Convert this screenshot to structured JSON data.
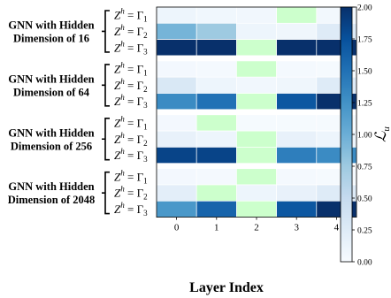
{
  "chart_data": {
    "type": "heatmap",
    "xlabel": "Layer Index",
    "x_ticks": [
      "0",
      "1",
      "2",
      "3",
      "4"
    ],
    "colorbar": {
      "label": "ℒ",
      "label_sub": "u",
      "colormap": "Blues",
      "range": [
        0.0,
        2.0
      ],
      "ticks": [
        "0.00",
        "0.25",
        "0.50",
        "0.75",
        "1.00",
        "1.25",
        "1.50",
        "1.75",
        "2.00"
      ]
    },
    "highlight_color": "#ccffcc",
    "groups": [
      {
        "title_line1": "GNN with Hidden",
        "title_line2": "Dimension of 16",
        "rows": [
          {
            "label": "Z",
            "sup": "h",
            "rhs": "Γ",
            "sub": "1",
            "values": [
              0.1,
              0.07,
              0.06,
              null,
              0.05
            ]
          },
          {
            "label": "Z",
            "sup": "h",
            "rhs": "Γ",
            "sub": "2",
            "values": [
              0.95,
              0.75,
              0.1,
              0.08,
              0.25
            ]
          },
          {
            "label": "Z",
            "sup": "h",
            "rhs": "Γ",
            "sub": "3",
            "values": [
              2.0,
              2.0,
              null,
              2.0,
              2.0
            ]
          }
        ],
        "highlight_cells": [
          [
            0,
            3
          ],
          [
            2,
            2
          ]
        ]
      },
      {
        "title_line1": "GNN with Hidden",
        "title_line2": "Dimension of 64",
        "rows": [
          {
            "label": "Z",
            "sup": "h",
            "rhs": "Γ",
            "sub": "1",
            "values": [
              0.04,
              0.03,
              null,
              0.03,
              0.02
            ]
          },
          {
            "label": "Z",
            "sup": "h",
            "rhs": "Γ",
            "sub": "2",
            "values": [
              0.3,
              0.1,
              0.06,
              0.08,
              0.25
            ]
          },
          {
            "label": "Z",
            "sup": "h",
            "rhs": "Γ",
            "sub": "3",
            "values": [
              1.3,
              1.5,
              null,
              1.7,
              2.0
            ]
          }
        ],
        "highlight_cells": [
          [
            0,
            2
          ],
          [
            2,
            2
          ]
        ]
      },
      {
        "title_line1": "GNN with Hidden",
        "title_line2": "Dimension of 256",
        "rows": [
          {
            "label": "Z",
            "sup": "h",
            "rhs": "Γ",
            "sub": "1",
            "values": [
              0.04,
              null,
              0.02,
              0.02,
              0.02
            ]
          },
          {
            "label": "Z",
            "sup": "h",
            "rhs": "Γ",
            "sub": "2",
            "values": [
              0.15,
              0.1,
              null,
              0.15,
              0.1
            ]
          },
          {
            "label": "Z",
            "sup": "h",
            "rhs": "Γ",
            "sub": "3",
            "values": [
              1.85,
              1.85,
              null,
              1.4,
              1.3
            ]
          }
        ],
        "highlight_cells": [
          [
            0,
            1
          ],
          [
            1,
            2
          ],
          [
            2,
            2
          ]
        ]
      },
      {
        "title_line1": "GNN with Hidden",
        "title_line2": "Dimension of 2048",
        "rows": [
          {
            "label": "Z",
            "sup": "h",
            "rhs": "Γ",
            "sub": "1",
            "values": [
              0.04,
              0.03,
              null,
              0.03,
              0.02
            ]
          },
          {
            "label": "Z",
            "sup": "h",
            "rhs": "Γ",
            "sub": "2",
            "values": [
              0.2,
              null,
              0.1,
              0.15,
              0.25
            ]
          },
          {
            "label": "Z",
            "sup": "h",
            "rhs": "Γ",
            "sub": "3",
            "values": [
              1.2,
              1.6,
              null,
              1.7,
              2.0
            ]
          }
        ],
        "highlight_cells": [
          [
            0,
            2
          ],
          [
            1,
            1
          ],
          [
            2,
            2
          ]
        ]
      }
    ]
  }
}
